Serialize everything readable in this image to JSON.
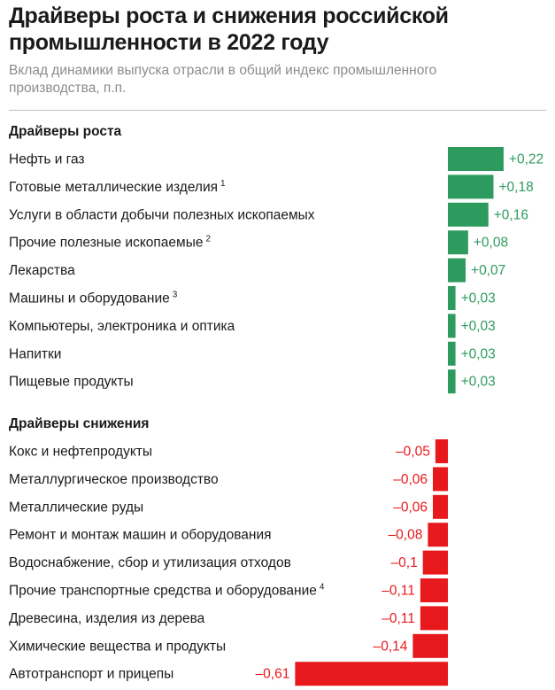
{
  "title": "Драйверы роста и снижения российской промышленности в 2022 году",
  "subtitle": "Вклад динамики выпуска отрасли в общий индекс промышленного производства, п.п.",
  "colors": {
    "growth": "#2e9b5e",
    "decline": "#e8191c",
    "growth_text": "#2e9b5e",
    "decline_text": "#e8191c"
  },
  "chart_data": {
    "type": "bar",
    "orientation": "horizontal",
    "groups": [
      {
        "name": "Драйверы роста",
        "items": [
          {
            "label": "Нефть и газ",
            "note": "",
            "value": 0.22,
            "value_label": "+0,22"
          },
          {
            "label": "Готовые металлические изделия",
            "note": "1",
            "value": 0.18,
            "value_label": "+0,18"
          },
          {
            "label": "Услуги в области добычи полезных ископаемых",
            "note": "",
            "value": 0.16,
            "value_label": "+0,16"
          },
          {
            "label": "Прочие полезные ископаемые",
            "note": "2",
            "value": 0.08,
            "value_label": "+0,08"
          },
          {
            "label": "Лекарства",
            "note": "",
            "value": 0.07,
            "value_label": "+0,07"
          },
          {
            "label": "Машины и оборудование",
            "note": "3",
            "value": 0.03,
            "value_label": "+0,03"
          },
          {
            "label": "Компьютеры, электроника и оптика",
            "note": "",
            "value": 0.03,
            "value_label": "+0,03"
          },
          {
            "label": "Напитки",
            "note": "",
            "value": 0.03,
            "value_label": "+0,03"
          },
          {
            "label": "Пищевые продукты",
            "note": "",
            "value": 0.03,
            "value_label": "+0,03"
          }
        ]
      },
      {
        "name": "Драйверы снижения",
        "items": [
          {
            "label": "Кокс и нефтепродукты",
            "note": "",
            "value": -0.05,
            "value_label": "–0,05"
          },
          {
            "label": "Металлургическое производство",
            "note": "",
            "value": -0.06,
            "value_label": "–0,06"
          },
          {
            "label": "Металлические руды",
            "note": "",
            "value": -0.06,
            "value_label": "–0,06"
          },
          {
            "label": "Ремонт и монтаж машин и оборудования",
            "note": "",
            "value": -0.08,
            "value_label": "–0,08"
          },
          {
            "label": "Водоснабжение, сбор и утилизация отходов",
            "note": "",
            "value": -0.1,
            "value_label": "–0,1"
          },
          {
            "label": "Прочие транспортные средства и оборудование",
            "note": "4",
            "value": -0.11,
            "value_label": "–0,11"
          },
          {
            "label": "Древесина, изделия из дерева",
            "note": "",
            "value": -0.11,
            "value_label": "–0,11"
          },
          {
            "label": "Химические вещества и продукты",
            "note": "",
            "value": -0.14,
            "value_label": "–0,14"
          },
          {
            "label": "Автотранспорт и прицепы",
            "note": "",
            "value": -0.61,
            "value_label": "–0,61"
          }
        ]
      }
    ]
  }
}
